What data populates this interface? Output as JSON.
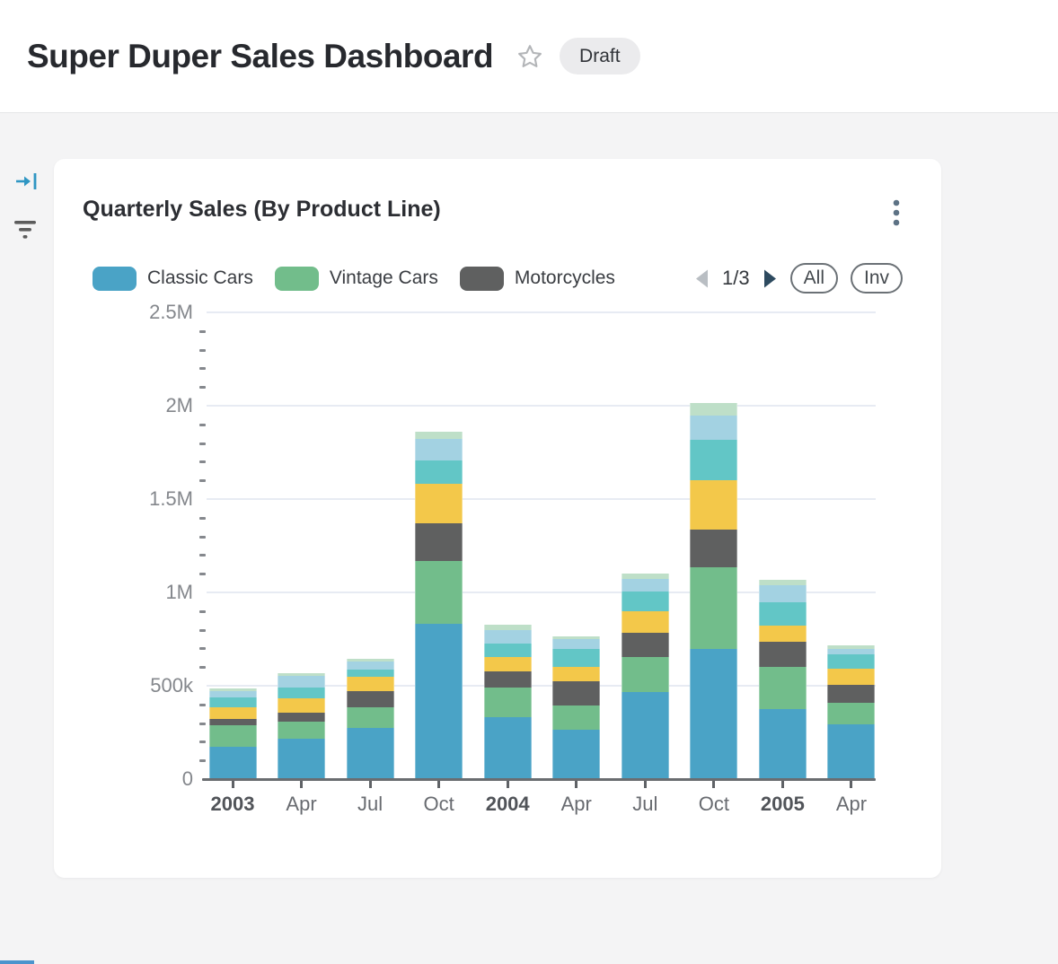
{
  "header": {
    "title": "Super Duper Sales Dashboard",
    "badge": "Draft"
  },
  "icons": {
    "rail": [
      "collapse-panel-icon",
      "filter-icon"
    ],
    "header": [
      "star-icon"
    ],
    "card": [
      "kebab-menu-icon"
    ],
    "pager": [
      "prev-triangle-icon",
      "next-triangle-icon"
    ]
  },
  "card": {
    "title": "Quarterly Sales (By Product Line)",
    "legend_pagination": "1/3",
    "button_all": "All",
    "button_inv": "Inv"
  },
  "colors": {
    "accent_blue": "#2f96c3",
    "page_bg": "#f4f4f5",
    "badge_bg": "#ebebed",
    "gridline": "#e7ebf3",
    "axis_line": "#6a6d70",
    "pager_prev": "#b9bec3",
    "pager_next": "#2d4a5f"
  },
  "chart_data": {
    "type": "bar",
    "stacked": true,
    "title": "Quarterly Sales (By Product Line)",
    "categories": [
      "2003",
      "Apr",
      "Jul",
      "Oct",
      "2004",
      "Apr",
      "Jul",
      "Oct",
      "2005",
      "Apr"
    ],
    "series": [
      {
        "name": "Classic Cars",
        "color": "#4aa3c6",
        "legend_visible": true,
        "values": [
          173000,
          215000,
          273000,
          832000,
          334000,
          266000,
          465000,
          697000,
          375000,
          292000
        ]
      },
      {
        "name": "Vintage Cars",
        "color": "#72bd8b",
        "legend_visible": true,
        "values": [
          115000,
          91000,
          112000,
          337000,
          155000,
          128000,
          188000,
          436000,
          226000,
          117000
        ]
      },
      {
        "name": "Motorcycles",
        "color": "#5f6060",
        "legend_visible": true,
        "values": [
          35000,
          48000,
          85000,
          202000,
          88000,
          128000,
          132000,
          205000,
          136000,
          96000
        ]
      },
      {
        "name": "Unlabeled (yellow, legend page 2)",
        "color": "#f3c84a",
        "legend_visible": false,
        "values": [
          60000,
          78000,
          80000,
          212000,
          77000,
          78000,
          112000,
          261000,
          83000,
          87000
        ]
      },
      {
        "name": "Unlabeled (teal, legend page 2)",
        "color": "#62c6c6",
        "legend_visible": false,
        "values": [
          54000,
          59000,
          35000,
          125000,
          71000,
          98000,
          109000,
          220000,
          125000,
          77000
        ]
      },
      {
        "name": "Unlabeled (light blue, legend page 2)",
        "color": "#a3d2e2",
        "legend_visible": false,
        "values": [
          35000,
          60000,
          45000,
          112000,
          74000,
          54000,
          64000,
          128000,
          95000,
          29000
        ]
      },
      {
        "name": "Unlabeled (pale green, legend page 3)",
        "color": "#bedfc8",
        "legend_visible": false,
        "values": [
          12000,
          17000,
          16000,
          40000,
          27000,
          13000,
          32000,
          67000,
          29000,
          19000
        ]
      }
    ],
    "y_ticks": [
      {
        "value": 0,
        "label": "0"
      },
      {
        "value": 500000,
        "label": "500k"
      },
      {
        "value": 1000000,
        "label": "1M"
      },
      {
        "value": 1500000,
        "label": "1.5M"
      },
      {
        "value": 2000000,
        "label": "2M"
      },
      {
        "value": 2500000,
        "label": "2.5M"
      }
    ],
    "ylim": [
      0,
      2500000
    ],
    "y_minor_ticks_per_interval": 4,
    "grid": "horizontal",
    "legend_position": "top"
  }
}
